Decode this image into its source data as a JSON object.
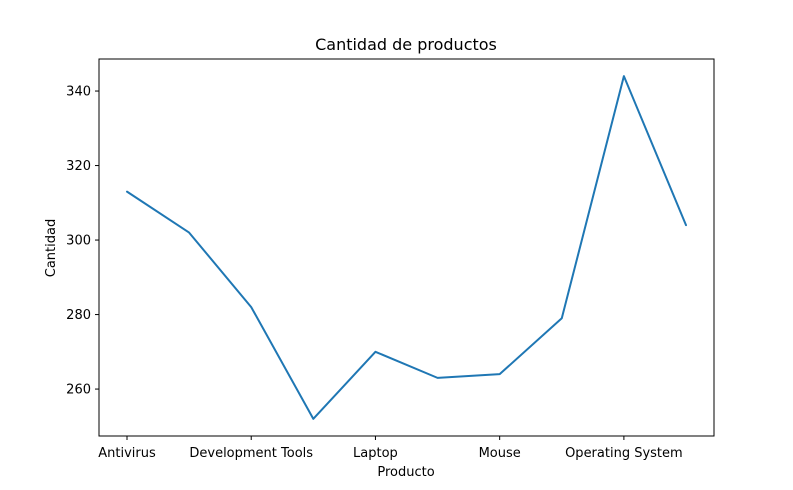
{
  "chart_data": {
    "type": "line",
    "title": "Cantidad de productos",
    "xlabel": "Producto",
    "ylabel": "Cantidad",
    "x_tick_labels": [
      "Antivirus",
      "Development Tools",
      "Laptop",
      "Mouse",
      "Operating System"
    ],
    "x_tick_indices": [
      0,
      2,
      4,
      6,
      8
    ],
    "values": [
      313,
      302,
      282,
      252,
      270,
      263,
      264,
      279,
      344,
      304
    ],
    "y_ticks": [
      260,
      280,
      300,
      320,
      340
    ],
    "ylim": [
      247.4,
      348.6
    ],
    "grid": false,
    "line_color": "#1f77b4"
  }
}
